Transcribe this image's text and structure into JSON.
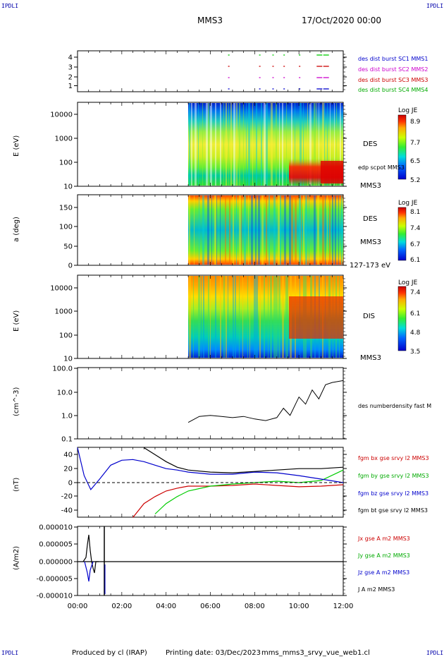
{
  "header": {
    "logo_left": "IPDLI",
    "logo_right": "IPDLI",
    "spacecraft": "MMS3",
    "date": "17/Oct/2020 00:00"
  },
  "footer": {
    "produced_by": "Produced by cl (IRAP)",
    "printing_date": "Printing date: 03/Dec/2023",
    "script_name": "mms_mms3_srvy_vue_web1.cl",
    "logo_left": "IPDLI",
    "logo_right": "IPDLI"
  },
  "colors": {
    "bx": "#cc0000",
    "by": "#00cc00",
    "bz": "#0000cc",
    "bt": "#000000",
    "sc1": "#0000cc",
    "sc2": "#cc00cc",
    "sc3": "#cc0000",
    "sc4": "#00cc00"
  },
  "chart_data": [
    {
      "type": "scatter",
      "panel": "burst availability",
      "yticks": [
        "1",
        "2",
        "3",
        "4"
      ],
      "ylim": [
        0.5,
        4.5
      ],
      "series": [
        {
          "name": "des dist burst SC1 MMS1",
          "color": "#0000cc",
          "y": 1,
          "x_hours": [
            6.8,
            8.2,
            8.8,
            9.3,
            10.0,
            10.8,
            11.1
          ]
        },
        {
          "name": "des dist burst SC2 MMS2",
          "color": "#cc00cc",
          "y": 2,
          "x_hours": [
            6.8,
            8.2,
            8.8,
            9.3,
            10.0,
            10.8,
            11.1
          ]
        },
        {
          "name": "des dist burst SC3 MMS3",
          "color": "#cc0000",
          "y": 3,
          "x_hours": [
            6.8,
            8.2,
            8.8,
            9.3,
            10.0,
            10.8,
            11.1
          ]
        },
        {
          "name": "des dist burst SC4 MMS4",
          "color": "#00cc00",
          "y": 4,
          "x_hours": [
            6.8,
            8.2,
            8.8,
            9.3,
            10.0,
            10.8,
            11.1
          ]
        }
      ]
    },
    {
      "type": "heatmap",
      "panel": "DES energy spectrogram",
      "ylabel": "E (eV)",
      "yticks": [
        "10",
        "100",
        "1000",
        "10000"
      ],
      "right_label_1": "DES",
      "right_label_2": "MMS3",
      "overlay_label": "edp scpot MMS3",
      "colorbar_title": "Log JE",
      "colorbar_ticks": [
        "8.9",
        "7.7",
        "6.5",
        "5.2"
      ],
      "data_start_hour": 5.0
    },
    {
      "type": "heatmap",
      "panel": "DES pitch angle",
      "ylabel": "a (deg)",
      "yticks": [
        "0",
        "50",
        "100",
        "150"
      ],
      "ylim": [
        0,
        180
      ],
      "right_label_1": "DES",
      "right_label_2": "MMS3",
      "energy_label": "127-173 eV",
      "colorbar_title": "Log JE",
      "colorbar_ticks": [
        "8.1",
        "7.4",
        "6.7",
        "6.1"
      ],
      "data_start_hour": 5.0
    },
    {
      "type": "heatmap",
      "panel": "DIS energy spectrogram",
      "ylabel": "E (eV)",
      "yticks": [
        "10",
        "100",
        "1000",
        "10000"
      ],
      "right_label_1": "DIS",
      "right_label_2": "MMS3",
      "colorbar_title": "Log JE",
      "colorbar_ticks": [
        "7.4",
        "6.1",
        "4.8",
        "3.5"
      ],
      "data_start_hour": 5.0
    },
    {
      "type": "line",
      "panel": "density",
      "ylabel": "(cm^-3)",
      "yticks": [
        "0.1",
        "1.0",
        "10.0",
        "100.0"
      ],
      "ylim_log": [
        0.1,
        100
      ],
      "series": [
        {
          "name": "des numberdensity fast M",
          "color": "#000000",
          "x_hours": [
            5.0,
            5.5,
            6.0,
            6.5,
            7.0,
            7.5,
            8.0,
            8.5,
            9.0,
            9.3,
            9.6,
            10.0,
            10.3,
            10.6,
            10.9,
            11.2,
            11.5,
            12.0
          ],
          "values": [
            0.5,
            0.9,
            1.0,
            0.9,
            0.8,
            0.9,
            0.7,
            0.6,
            0.8,
            2.0,
            1.0,
            6.0,
            3.0,
            12.0,
            5.0,
            20.0,
            25.0,
            30.0
          ]
        }
      ]
    },
    {
      "type": "line",
      "panel": "magnetic field",
      "ylabel": "(nT)",
      "yticks": [
        "-40",
        "-20",
        "0",
        "20",
        "40"
      ],
      "ylim": [
        -50,
        50
      ],
      "x_hours": [
        0.0,
        0.3,
        0.6,
        1.0,
        1.5,
        2.0,
        2.5,
        3.0,
        3.5,
        4.0,
        4.5,
        5.0,
        6.0,
        7.0,
        8.0,
        9.0,
        10.0,
        11.0,
        12.0
      ],
      "series": [
        {
          "name": "fgm bx gse srvy l2 MMS3",
          "color": "#cc0000",
          "values": [
            null,
            null,
            null,
            null,
            null,
            null,
            -50,
            -30,
            -20,
            -12,
            -8,
            -5,
            -5,
            -4,
            -2,
            -4,
            -6,
            -5,
            -3
          ]
        },
        {
          "name": "fgm by gse srvy l2 MMS3",
          "color": "#00cc00",
          "values": [
            null,
            null,
            null,
            null,
            null,
            null,
            null,
            null,
            -45,
            -30,
            -20,
            -12,
            -5,
            -2,
            0,
            2,
            0,
            3,
            18
          ]
        },
        {
          "name": "fgm bz gse srvy l2 MMS3",
          "color": "#0000cc",
          "values": [
            50,
            10,
            -10,
            5,
            25,
            32,
            33,
            30,
            25,
            20,
            18,
            15,
            12,
            12,
            15,
            14,
            10,
            5,
            0
          ]
        },
        {
          "name": "fgm bt gse srvy l2 MMS3",
          "color": "#000000",
          "values": [
            null,
            null,
            null,
            null,
            null,
            null,
            null,
            50,
            40,
            30,
            22,
            18,
            15,
            14,
            16,
            18,
            20,
            20,
            22
          ]
        }
      ]
    },
    {
      "type": "line",
      "panel": "current density",
      "ylabel": "(A/m2)",
      "yticks": [
        "-0.000010",
        "-0.000005",
        "0.000000",
        "0.000005",
        "0.000010"
      ],
      "ylim": [
        -1e-05,
        1e-05
      ],
      "xticks": [
        "00:00",
        "02:00",
        "04:00",
        "06:00",
        "08:00",
        "10:00",
        "12:00"
      ],
      "series": [
        {
          "name": "Jx gse A m2 MMS3",
          "color": "#cc0000"
        },
        {
          "name": "Jy gse A m2 MMS3",
          "color": "#00cc00"
        },
        {
          "name": "Jz gse A m2 MMS3",
          "color": "#0000cc"
        },
        {
          "name": "J A m2 MMS3",
          "color": "#000000"
        }
      ]
    }
  ]
}
